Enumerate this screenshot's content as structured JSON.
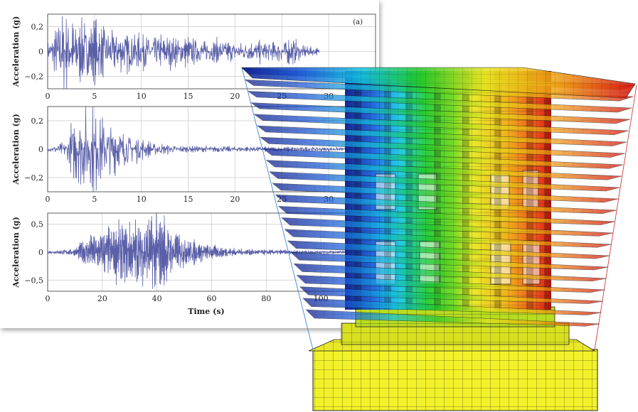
{
  "colors": {
    "trace": "#5a5fa8",
    "grid": "#c8c8c8",
    "axis": "#333333",
    "model_low": "#0a1a8c",
    "model_mid": "#28c828",
    "model_high": "#e01a10",
    "base": "#f2f22a"
  },
  "chart_data": [
    {
      "type": "line",
      "panel_label": "(a)",
      "ylabel": "Acceleration (g)",
      "xlabel": "",
      "xlim": [
        0,
        35
      ],
      "ylim": [
        -0.3,
        0.3
      ],
      "xticks": [
        "0",
        "5",
        "10",
        "15",
        "20",
        "25",
        "30"
      ],
      "yticks": [
        "0,2",
        "0",
        "−0,2"
      ],
      "ytick_values": [
        0.2,
        0,
        -0.2
      ],
      "xtick_values": [
        0,
        5,
        10,
        15,
        20,
        25,
        30
      ],
      "signal": {
        "duration": 29,
        "peak": 0.29,
        "envelope": [
          [
            0,
            0.05
          ],
          [
            1.5,
            0.29
          ],
          [
            3,
            0.22
          ],
          [
            5,
            0.2
          ],
          [
            8,
            0.14
          ],
          [
            12,
            0.12
          ],
          [
            18,
            0.08
          ],
          [
            24,
            0.07
          ],
          [
            26,
            0.1
          ],
          [
            27,
            0.05
          ],
          [
            29,
            0.02
          ]
        ]
      }
    },
    {
      "type": "line",
      "ylabel": "Acceleration (g)",
      "xlabel": "",
      "xlim": [
        0,
        35
      ],
      "ylim": [
        -0.3,
        0.3
      ],
      "xticks": [
        "0",
        "5",
        "10",
        "15",
        "20",
        "25",
        "30"
      ],
      "yticks": [
        "0,2",
        "0",
        "−0,2"
      ],
      "ytick_values": [
        0.2,
        0,
        -0.2
      ],
      "xtick_values": [
        0,
        5,
        10,
        15,
        20,
        25,
        30
      ],
      "signal": {
        "duration": 33,
        "peak": 0.27,
        "envelope": [
          [
            0,
            0.01
          ],
          [
            2,
            0.05
          ],
          [
            3,
            0.22
          ],
          [
            4.5,
            0.27
          ],
          [
            6,
            0.2
          ],
          [
            8,
            0.12
          ],
          [
            11,
            0.04
          ],
          [
            15,
            0.02
          ],
          [
            33,
            0.01
          ]
        ]
      }
    },
    {
      "type": "line",
      "ylabel": "Acceleration (g)",
      "xlabel": "Time (s)",
      "xlim": [
        0,
        120
      ],
      "ylim": [
        -0.7,
        0.7
      ],
      "xticks": [
        "0",
        "20",
        "40",
        "60",
        "80",
        "100"
      ],
      "yticks": [
        "0,5",
        "0",
        "−0,5"
      ],
      "ytick_values": [
        0.5,
        0,
        -0.5
      ],
      "xtick_values": [
        0,
        20,
        40,
        60,
        80,
        100
      ],
      "signal": {
        "duration": 120,
        "peak": 0.65,
        "envelope": [
          [
            0,
            0.02
          ],
          [
            10,
            0.06
          ],
          [
            15,
            0.3
          ],
          [
            25,
            0.42
          ],
          [
            35,
            0.5
          ],
          [
            41,
            0.65
          ],
          [
            45,
            0.35
          ],
          [
            55,
            0.16
          ],
          [
            70,
            0.05
          ],
          [
            90,
            0.03
          ],
          [
            120,
            0.01
          ]
        ]
      }
    }
  ]
}
